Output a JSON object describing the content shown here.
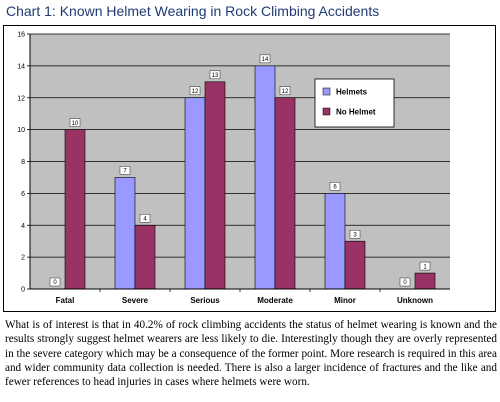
{
  "title": "Chart 1: Known Helmet Wearing in Rock Climbing Accidents",
  "chart_data": {
    "type": "bar",
    "categories": [
      "Fatal",
      "Severe",
      "Serious",
      "Moderate",
      "Minor",
      "Unknown"
    ],
    "series": [
      {
        "name": "Helmets",
        "values": [
          0,
          7,
          12,
          14,
          6,
          0
        ],
        "color": "#9999ff"
      },
      {
        "name": "No Helmet",
        "values": [
          10,
          4,
          13,
          12,
          3,
          1
        ],
        "color": "#993366"
      }
    ],
    "y_ticks": [
      "0",
      "2",
      "4",
      "6",
      "8",
      "10",
      "12",
      "14",
      "16"
    ],
    "ylim": [
      0,
      16
    ],
    "gridlines": true,
    "plot_background": "#c0c0c0",
    "legend_position": "right"
  },
  "paragraph": "What is of interest is that in 40.2% of rock climbing accidents the status of helmet wearing is known and the results strongly suggest helmet wearers are less likely to die. Interestingly though they are overly represented in the severe category which may be a consequence of the former point. More research is required in this area and wider community data collection is needed. There is also a larger incidence of fractures and the like and fewer references to head injuries in cases where helmets were worn."
}
